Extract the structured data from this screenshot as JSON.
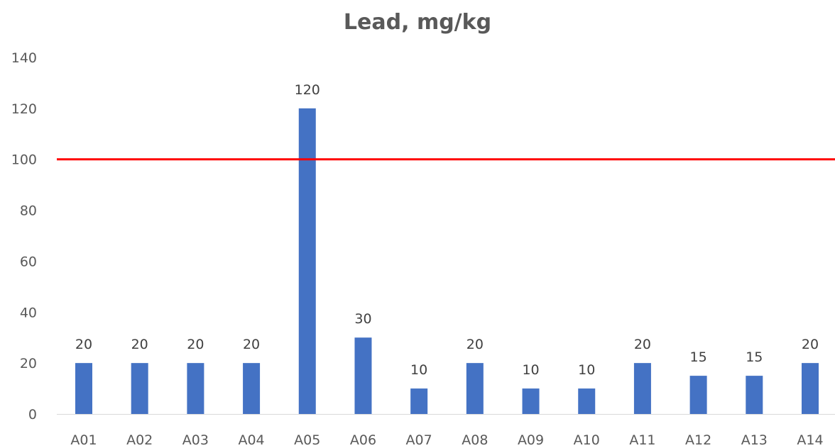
{
  "chart_data": {
    "type": "bar",
    "title": "Lead, mg/kg",
    "xlabel": "",
    "ylabel": "",
    "categories": [
      "A01",
      "A02",
      "A03",
      "A04",
      "A05",
      "A06",
      "A07",
      "A08",
      "A09",
      "A10",
      "A11",
      "A12",
      "A13",
      "A14"
    ],
    "series": [
      {
        "values": [
          20,
          20,
          20,
          20,
          120,
          30,
          10,
          20,
          10,
          10,
          20,
          15,
          15,
          20
        ],
        "color": "#4472c4"
      }
    ],
    "ylim": [
      0,
      140
    ],
    "yticks": [
      "0",
      "20",
      "40",
      "60",
      "80",
      "100",
      "120",
      "140"
    ],
    "data_labels": true,
    "reference_line": {
      "y": 100,
      "color": "#ff0000"
    },
    "grid": false,
    "legend": "none"
  }
}
